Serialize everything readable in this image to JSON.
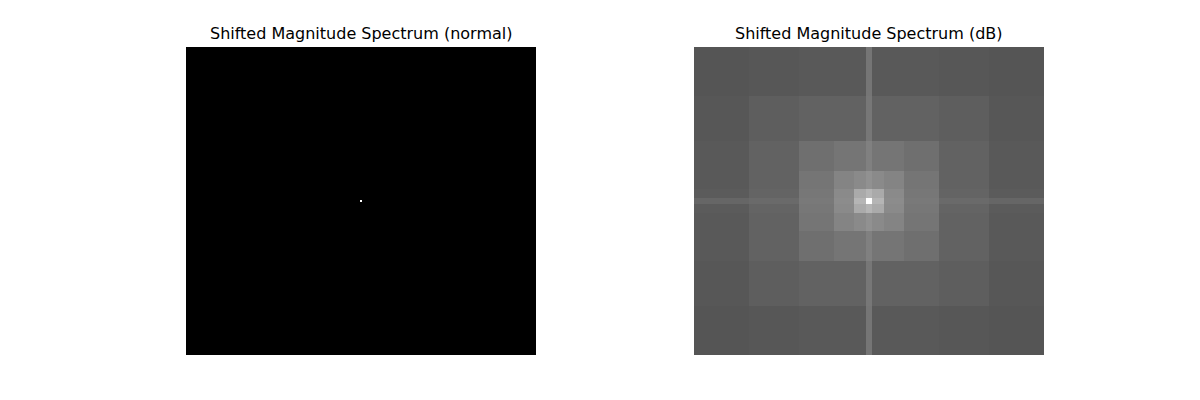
{
  "chart_data": [
    {
      "type": "heatmap",
      "title": "Shifted Magnitude Spectrum (normal)",
      "color": "gray",
      "tick_labels": false,
      "x": [
        -175,
        -1,
        1,
        175
      ],
      "y": [
        -154,
        -1,
        1,
        154
      ],
      "xlim": [
        -175,
        175
      ],
      "ylim": [
        -154,
        154
      ],
      "zlim": [
        0,
        1
      ],
      "cells": [
        [
          0,
          0,
          0
        ],
        [
          0,
          1,
          0
        ],
        [
          0,
          0,
          0
        ]
      ]
    },
    {
      "type": "heatmap",
      "title": "Shifted Magnitude Spectrum (dB)",
      "color": "gray",
      "tick_labels": false,
      "x": [
        -175,
        -120,
        -70,
        -35,
        -15,
        -3,
        3,
        15,
        35,
        70,
        120,
        175
      ],
      "y": [
        -154,
        -105,
        -60,
        -30,
        -12,
        -3,
        3,
        12,
        30,
        60,
        105,
        154
      ],
      "xlim": [
        -175,
        175
      ],
      "ylim": [
        -154,
        154
      ],
      "zlim": [
        20,
        140
      ],
      "cells": [
        [
          60,
          61,
          62,
          62,
          62,
          75,
          62,
          62,
          62,
          61,
          60
        ],
        [
          61,
          64,
          66,
          66,
          66,
          76,
          66,
          66,
          66,
          64,
          61
        ],
        [
          62,
          66,
          72,
          75,
          75,
          80,
          75,
          75,
          72,
          66,
          62
        ],
        [
          62,
          66,
          75,
          82,
          85,
          88,
          85,
          82,
          75,
          66,
          62
        ],
        [
          63,
          67,
          76,
          85,
          100,
          105,
          100,
          85,
          76,
          67,
          63
        ],
        [
          68,
          70,
          77,
          86,
          105,
          140,
          105,
          86,
          77,
          70,
          68
        ],
        [
          63,
          67,
          76,
          85,
          100,
          105,
          100,
          85,
          76,
          67,
          63
        ],
        [
          62,
          66,
          75,
          82,
          85,
          88,
          85,
          82,
          75,
          66,
          62
        ],
        [
          62,
          66,
          72,
          75,
          75,
          80,
          75,
          75,
          72,
          66,
          62
        ],
        [
          61,
          64,
          66,
          66,
          66,
          76,
          66,
          66,
          66,
          64,
          61
        ],
        [
          60,
          61,
          62,
          62,
          62,
          75,
          62,
          62,
          62,
          61,
          60
        ]
      ]
    }
  ]
}
